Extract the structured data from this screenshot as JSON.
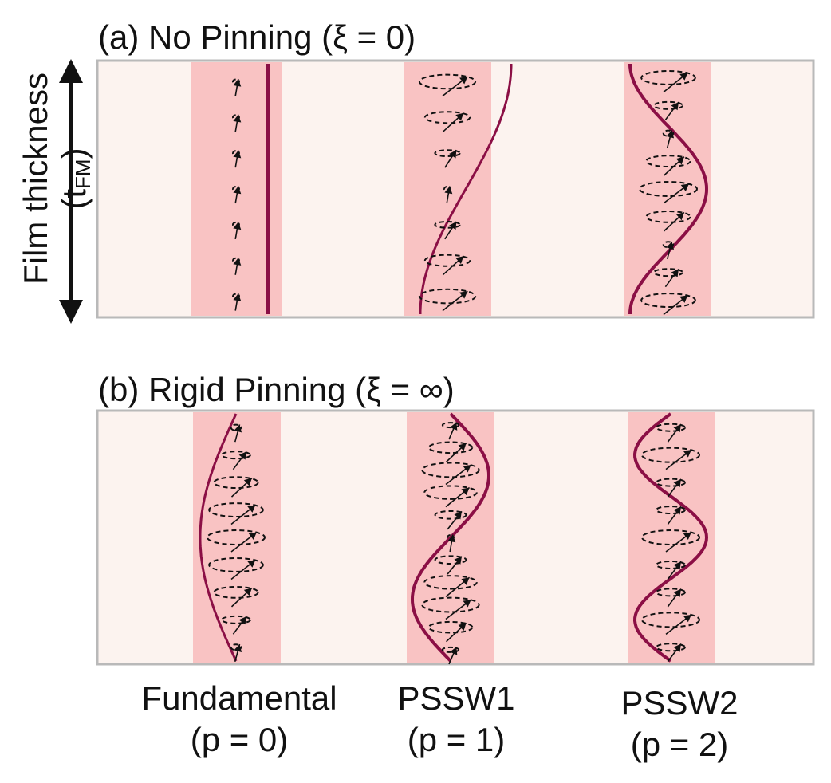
{
  "axis": {
    "label_main": "Film thickness (t",
    "label_sub": "FM",
    "label_close": ")"
  },
  "panels": [
    {
      "id": "a",
      "title": "(a) No Pinning (ξ  = 0)",
      "xi": "0"
    },
    {
      "id": "b",
      "title": "(b) Rigid Pinning (ξ  = ∞)",
      "xi": "∞"
    }
  ],
  "modes": [
    {
      "name": "Fundamental",
      "p_label": "(p = 0)",
      "p": 0
    },
    {
      "name": "PSSW1",
      "p_label": "(p = 1)",
      "p": 1
    },
    {
      "name": "PSSW2",
      "p_label": "(p = 2)",
      "p": 2
    }
  ],
  "colors": {
    "film_background": "#fcf3ef",
    "film_border": "#b9b9b9",
    "mode_band": "#f9c3c3",
    "profile_curve": "#8b0f45",
    "spin_arrow": "#111111",
    "precession_ellipse": "#111111"
  }
}
